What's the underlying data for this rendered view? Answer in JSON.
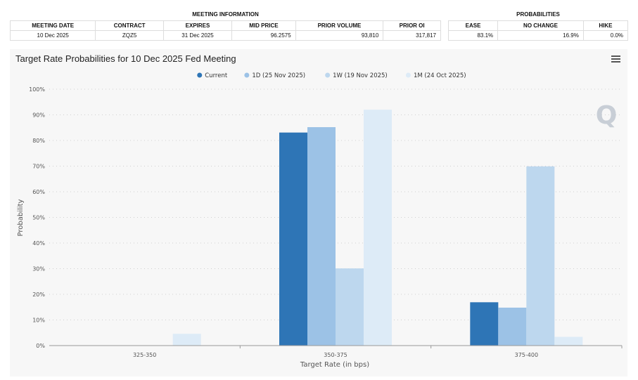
{
  "meeting_table": {
    "group_header": "MEETING INFORMATION",
    "columns": [
      "MEETING DATE",
      "CONTRACT",
      "EXPIRES",
      "MID PRICE",
      "PRIOR VOLUME",
      "PRIOR OI"
    ],
    "row": [
      "10 Dec 2025",
      "ZQZ5",
      "31 Dec 2025",
      "96.2575",
      "93,810",
      "317,817"
    ]
  },
  "prob_table": {
    "group_header": "PROBABILITIES",
    "columns": [
      "EASE",
      "NO CHANGE",
      "HIKE"
    ],
    "row": [
      "83.1%",
      "16.9%",
      "0.0%"
    ]
  },
  "chart_data": {
    "type": "bar",
    "title": "Target Rate Probabilities for 10 Dec 2025 Fed Meeting",
    "xlabel": "Target Rate (in bps)",
    "ylabel": "Probability",
    "categories": [
      "325-350",
      "350-375",
      "375-400"
    ],
    "series": [
      {
        "name": "Current",
        "color": "#2e75b6",
        "values": [
          0,
          83.1,
          16.9
        ]
      },
      {
        "name": "1D (25 Nov 2025)",
        "color": "#9cc2e6",
        "values": [
          0,
          85.2,
          14.8
        ]
      },
      {
        "name": "1W (19 Nov 2025)",
        "color": "#bdd7ee",
        "values": [
          0,
          30.1,
          69.9
        ]
      },
      {
        "name": "1M (24 Oct 2025)",
        "color": "#ddebf7",
        "values": [
          4.6,
          92.0,
          3.4
        ]
      }
    ],
    "ylim": [
      0,
      100
    ],
    "yticks": [
      "0%",
      "10%",
      "20%",
      "30%",
      "40%",
      "50%",
      "60%",
      "70%",
      "80%",
      "90%",
      "100%"
    ],
    "grid": true,
    "legend_position": "top-center",
    "watermark": "Q"
  }
}
